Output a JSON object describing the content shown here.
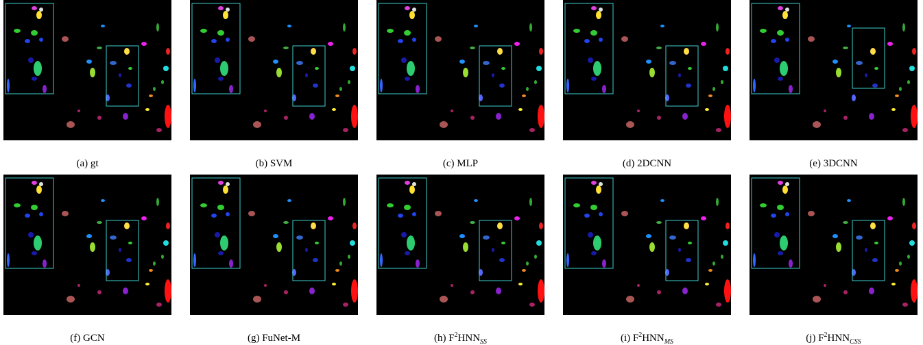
{
  "panels": [
    {
      "prefix": "(a)  gt"
    },
    {
      "prefix": "(b)  SVM"
    },
    {
      "prefix": "(c)  MLP"
    },
    {
      "prefix": "(d)  2DCNN"
    },
    {
      "prefix": "(e)  3DCNN"
    },
    {
      "prefix": "(f)  GCN"
    },
    {
      "prefix": "(g)  FuNet-M"
    },
    {
      "prefix": "(h)  F",
      "sup": "2",
      "main": "HNN",
      "sub": "SS"
    },
    {
      "prefix": "(i)  F",
      "sup": "2",
      "main": "HNN",
      "sub": "MS"
    },
    {
      "prefix": "(j)  F",
      "sup": "2",
      "main": "HNN",
      "sub": "CSS"
    }
  ]
}
